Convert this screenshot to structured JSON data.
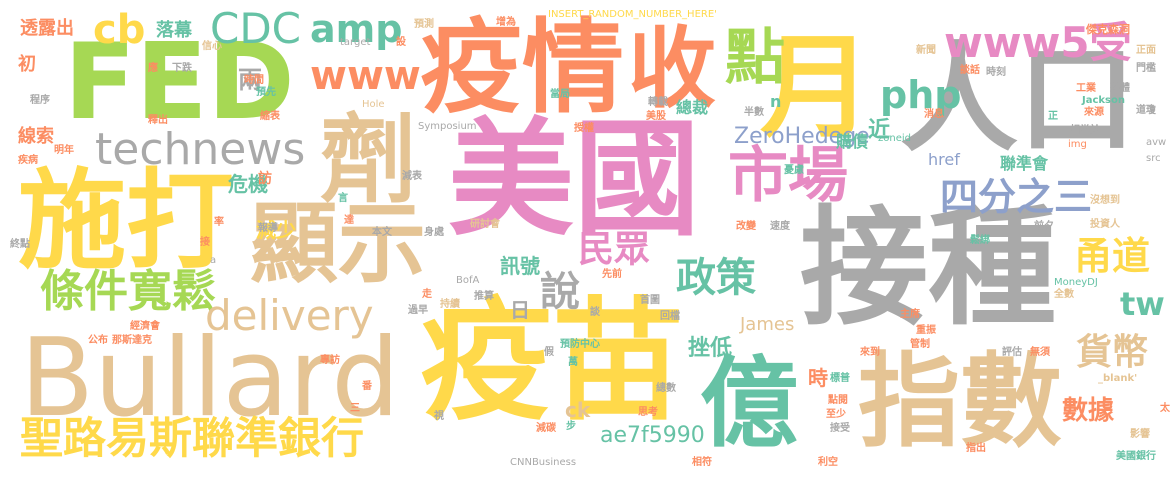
{
  "palette": {
    "gray": "#a9a9a9",
    "yellow": "#ffd94a",
    "pink": "#e78ac3",
    "green": "#a6d854",
    "tan": "#e5c494",
    "orange": "#fc8d62",
    "teal": "#66c2a5",
    "blue": "#8da0cb"
  },
  "words": [
    {
      "text": "美國",
      "color": "pink"
    },
    {
      "text": "疫苗",
      "color": "yellow"
    },
    {
      "text": "接種",
      "color": "gray"
    },
    {
      "text": "Bullard",
      "color": "tan"
    },
    {
      "text": "FED",
      "color": "green"
    },
    {
      "text": "人口",
      "color": "gray"
    },
    {
      "text": "施打",
      "color": "yellow"
    },
    {
      "text": "疫情",
      "color": "orange"
    },
    {
      "text": "劑",
      "color": "tan"
    },
    {
      "text": "顯示",
      "color": "tan"
    },
    {
      "text": "指數",
      "color": "tan"
    },
    {
      "text": "月",
      "color": "yellow"
    },
    {
      "text": "億",
      "color": "teal"
    },
    {
      "text": "收",
      "color": "orange"
    },
    {
      "text": "聖路易斯聯準銀行",
      "color": "yellow"
    },
    {
      "text": "市場",
      "color": "pink"
    },
    {
      "text": "點",
      "color": "green"
    },
    {
      "text": "technews",
      "color": "gray"
    },
    {
      "text": "條件寬鬆",
      "color": "green"
    },
    {
      "text": "www5受",
      "color": "pink"
    },
    {
      "text": "CDC",
      "color": "teal"
    },
    {
      "text": "delivery",
      "color": "tan"
    },
    {
      "text": "www",
      "color": "orange"
    },
    {
      "text": "amp",
      "color": "teal"
    },
    {
      "text": "php",
      "color": "teal"
    },
    {
      "text": "四分之三",
      "color": "blue"
    },
    {
      "text": "cb",
      "color": "yellow"
    },
    {
      "text": "政策",
      "color": "teal"
    },
    {
      "text": "民眾",
      "color": "pink"
    },
    {
      "text": "說",
      "color": "gray"
    },
    {
      "text": "甬道",
      "color": "yellow"
    },
    {
      "text": "貨幣",
      "color": "tan"
    },
    {
      "text": "tw",
      "color": "teal"
    },
    {
      "text": "ZeroHedege",
      "color": "blue"
    },
    {
      "text": "數據",
      "color": "orange"
    },
    {
      "text": "ae7f5990",
      "color": "teal"
    },
    {
      "text": "挫低",
      "color": "teal"
    },
    {
      "text": "兩",
      "color": "gray"
    },
    {
      "text": "近",
      "color": "teal"
    },
    {
      "text": "危機",
      "color": "teal"
    },
    {
      "text": "減少",
      "color": "yellow"
    },
    {
      "text": "訊號",
      "color": "teal"
    },
    {
      "text": "James",
      "color": "tan"
    },
    {
      "text": "日",
      "color": "gray"
    },
    {
      "text": "ck",
      "color": "tan"
    },
    {
      "text": "時",
      "color": "orange"
    },
    {
      "text": "落幕",
      "color": "teal"
    },
    {
      "text": "透露出",
      "color": "orange"
    },
    {
      "text": "初",
      "color": "orange"
    },
    {
      "text": "線索",
      "color": "orange"
    },
    {
      "text": "總裁",
      "color": "teal"
    },
    {
      "text": "購債",
      "color": "teal"
    },
    {
      "text": "聯準會",
      "color": "teal"
    },
    {
      "text": "href",
      "color": "blue"
    },
    {
      "text": "n",
      "color": "teal"
    },
    {
      "text": "訪",
      "color": "orange"
    },
    {
      "text": "INSERT_RANDOM_NUMBER_HERE'",
      "color": "yellow"
    },
    {
      "text": "傑克森洞",
      "color": "orange"
    },
    {
      "text": "增為",
      "color": "orange"
    },
    {
      "text": "預測",
      "color": "tan"
    },
    {
      "text": "target",
      "color": "gray"
    },
    {
      "text": "設",
      "color": "orange"
    },
    {
      "text": "信心",
      "color": "tan"
    },
    {
      "text": "應",
      "color": "orange"
    },
    {
      "text": "下跌",
      "color": "gray"
    },
    {
      "text": "時間",
      "color": "orange"
    },
    {
      "text": "程序",
      "color": "gray"
    },
    {
      "text": "預先",
      "color": "teal"
    },
    {
      "text": "Hole",
      "color": "tan"
    },
    {
      "text": "當局",
      "color": "teal"
    },
    {
      "text": "新聞",
      "color": "tan"
    },
    {
      "text": "談話",
      "color": "orange"
    },
    {
      "text": "時刻",
      "color": "gray"
    },
    {
      "text": "工業",
      "color": "orange"
    },
    {
      "text": "整體",
      "color": "gray"
    },
    {
      "text": "正面",
      "color": "tan"
    },
    {
      "text": "門檻",
      "color": "gray"
    },
    {
      "text": "Jackson",
      "color": "teal"
    },
    {
      "text": "來源",
      "color": "orange"
    },
    {
      "text": "消息",
      "color": "orange"
    },
    {
      "text": "相當於",
      "color": "gray"
    },
    {
      "text": "道瓊",
      "color": "gray"
    },
    {
      "text": "半數",
      "color": "gray"
    },
    {
      "text": "轉載",
      "color": "gray"
    },
    {
      "text": "美股",
      "color": "orange"
    },
    {
      "text": "授權",
      "color": "orange"
    },
    {
      "text": "縮表",
      "color": "orange"
    },
    {
      "text": "釋出",
      "color": "orange"
    },
    {
      "text": "Symposium",
      "color": "gray"
    },
    {
      "text": "zoneid",
      "color": "teal"
    },
    {
      "text": "img",
      "color": "orange"
    },
    {
      "text": "avw",
      "color": "gray"
    },
    {
      "text": "src",
      "color": "gray"
    },
    {
      "text": "正",
      "color": "teal"
    },
    {
      "text": "憂慮",
      "color": "teal"
    },
    {
      "text": "疾病",
      "color": "orange"
    },
    {
      "text": "明年",
      "color": "orange"
    },
    {
      "text": "減表",
      "color": "gray"
    },
    {
      "text": "言",
      "color": "teal"
    },
    {
      "text": "率",
      "color": "orange"
    },
    {
      "text": "報導",
      "color": "gray"
    },
    {
      "text": "達",
      "color": "orange"
    },
    {
      "text": "沒想到",
      "color": "tan"
    },
    {
      "text": "投資人",
      "color": "tan"
    },
    {
      "text": "終點",
      "color": "gray"
    },
    {
      "text": "接",
      "color": "orange"
    },
    {
      "text": "a",
      "color": "gray"
    },
    {
      "text": "本文",
      "color": "gray"
    },
    {
      "text": "身處",
      "color": "gray"
    },
    {
      "text": "研討會",
      "color": "tan"
    },
    {
      "text": "改變",
      "color": "orange"
    },
    {
      "text": "速度",
      "color": "gray"
    },
    {
      "text": "前夕",
      "color": "gray"
    },
    {
      "text": "鬆綁",
      "color": "teal"
    },
    {
      "text": "全數",
      "color": "tan"
    },
    {
      "text": "MoneyDJ",
      "color": "teal"
    },
    {
      "text": "BofA",
      "color": "gray"
    },
    {
      "text": "推算",
      "color": "gray"
    },
    {
      "text": "先前",
      "color": "orange"
    },
    {
      "text": "首圖",
      "color": "gray"
    },
    {
      "text": "走",
      "color": "orange"
    },
    {
      "text": "持續",
      "color": "tan"
    },
    {
      "text": "過早",
      "color": "gray"
    },
    {
      "text": "經濟會",
      "color": "orange"
    },
    {
      "text": "公布",
      "color": "orange"
    },
    {
      "text": "那斯達克",
      "color": "orange"
    },
    {
      "text": "談",
      "color": "gray"
    },
    {
      "text": "回檔",
      "color": "gray"
    },
    {
      "text": "主席",
      "color": "orange"
    },
    {
      "text": "重振",
      "color": "orange"
    },
    {
      "text": "管制",
      "color": "orange"
    },
    {
      "text": "預防中心",
      "color": "teal"
    },
    {
      "text": "假",
      "color": "gray"
    },
    {
      "text": "萬",
      "color": "teal"
    },
    {
      "text": "評估",
      "color": "gray"
    },
    {
      "text": "無須",
      "color": "orange"
    },
    {
      "text": "來到",
      "color": "orange"
    },
    {
      "text": "_blank'",
      "color": "tan"
    },
    {
      "text": "專訪",
      "color": "orange"
    },
    {
      "text": "番",
      "color": "orange"
    },
    {
      "text": "標普",
      "color": "teal"
    },
    {
      "text": "總數",
      "color": "gray"
    },
    {
      "text": "點閱",
      "color": "orange"
    },
    {
      "text": "太",
      "color": "orange"
    },
    {
      "text": "三",
      "color": "orange"
    },
    {
      "text": "視",
      "color": "gray"
    },
    {
      "text": "減碳",
      "color": "orange"
    },
    {
      "text": "步",
      "color": "teal"
    },
    {
      "text": "思考",
      "color": "orange"
    },
    {
      "text": "至少",
      "color": "orange"
    },
    {
      "text": "接受",
      "color": "gray"
    },
    {
      "text": "影響",
      "color": "tan"
    },
    {
      "text": "指出",
      "color": "orange"
    },
    {
      "text": "CNNBusiness",
      "color": "gray"
    },
    {
      "text": "相符",
      "color": "orange"
    },
    {
      "text": "利空",
      "color": "orange"
    },
    {
      "text": "美國銀行",
      "color": "teal"
    }
  ]
}
